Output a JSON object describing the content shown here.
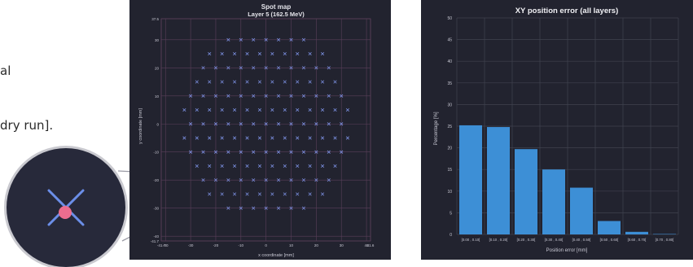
{
  "side_text": {
    "line1": "al",
    "line2": "dry run]."
  },
  "spot_map": {
    "title": "Spot map",
    "subtitle": "Layer 5 (162.5 MeV)",
    "xlabel": "x coordinate [mm]",
    "ylabel": "y coordinate [mm]",
    "x_ticks": [
      "-41.7",
      "-40",
      "-30",
      "-20",
      "-10",
      "0",
      "10",
      "20",
      "30",
      "40",
      "41.6"
    ],
    "y_ticks": [
      "37.5",
      "30",
      "20",
      "10",
      "0",
      "-10",
      "-20",
      "-30",
      "-40",
      "-41.7"
    ],
    "colors": {
      "background": "#22232f",
      "grid": "#5a3f5a",
      "spot": "#7b8fe0",
      "marker": "#ee6f8d"
    }
  },
  "error_chart": {
    "title": "XY position error (all layers)",
    "xlabel": "Position error [mm]",
    "ylabel": "Percentage [%]",
    "y_ticks": [
      "0",
      "5",
      "10",
      "15",
      "20",
      "25",
      "30",
      "35",
      "40",
      "45",
      "50"
    ],
    "colors": {
      "bar": "#3d8fd6",
      "background": "#22232f"
    }
  },
  "chart_data": [
    {
      "type": "scatter",
      "title": "Spot map",
      "subtitle": "Layer 5 (162.5 MeV)",
      "xlabel": "x coordinate [mm]",
      "ylabel": "y coordinate [mm]",
      "xlim": [
        -41.7,
        41.6
      ],
      "ylim": [
        -41.7,
        37.5
      ],
      "grid": true,
      "marker": "x",
      "pattern": {
        "spacing": 5,
        "radius": 34,
        "offset": 2.5
      }
    },
    {
      "type": "bar",
      "title": "XY position error (all layers)",
      "xlabel": "Position error [mm]",
      "ylabel": "Percentage [%]",
      "categories": [
        "[0.00 , 0.10[",
        "[0.10 , 0.20[",
        "[0.20 , 0.30[",
        "[0.30 , 0.40[",
        "[0.40 , 0.50[",
        "[0.50 , 0.60[",
        "[0.60 , 0.70[",
        "[0.70 , 0.80["
      ],
      "values": [
        25.2,
        24.8,
        19.7,
        15.0,
        10.8,
        3.1,
        0.6,
        0.1
      ],
      "ylim": [
        0,
        50
      ],
      "grid": true
    }
  ]
}
